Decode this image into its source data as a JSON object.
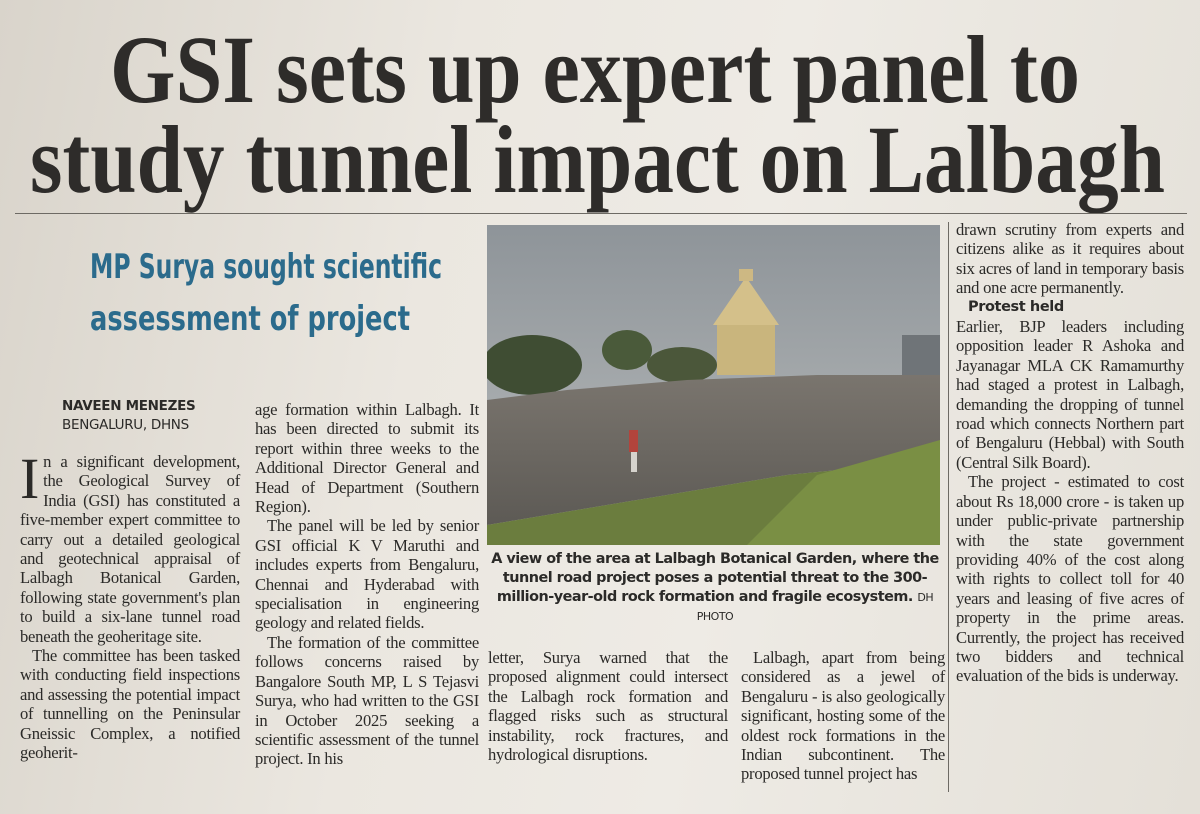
{
  "article": {
    "headline": [
      "GSI sets up expert panel to",
      "study tunnel impact on Lalbagh"
    ],
    "subheadline": [
      "MP Surya sought scientific",
      "assessment of project"
    ],
    "byline": {
      "author": "NAVEEN MENEZES",
      "location": "BENGALURU, DHNS"
    },
    "photo": {
      "caption": "A view of the area at Lalbagh Botanical Garden, where the tunnel road project poses a potential threat to the 300-million-year-old rock formation and fragile ecosystem.",
      "credit": "DH PHOTO"
    },
    "columns": [
      {
        "paragraphs": [
          "In a significant development, the Geological Survey of India (GSI) has constituted a five-member expert committee to carry out a detailed geological and geotechnical appraisal of Lalbagh Botanical Garden, following state government's plan to build a six-lane tunnel road beneath the geoheritage site.",
          "The committee has been tasked with conducting field inspections and assessing the potential impact of tunnelling on the Peninsular Gneissic Complex, a notified geoherit-"
        ]
      },
      {
        "paragraphs": [
          "age formation within Lalbagh. It has been directed to submit its report within three weeks to the Additional Director General and Head of Department (Southern Region).",
          "The panel will be led by senior GSI official K V Maruthi and includes experts from Bengaluru, Chennai and Hyderabad with specialisation in engineering geology and related fields.",
          "The formation of the committee follows concerns raised by Bangalore South MP, L S Tejasvi Surya, who had written to the GSI in October 2025 seeking a scientific assessment of the tunnel project. In his"
        ]
      },
      {
        "paragraphs": [
          "letter, Surya warned that the proposed alignment could intersect the Lalbagh rock formation and flagged risks such as structural instability, rock fractures, and hydrological disruptions."
        ]
      },
      {
        "paragraphs": [
          "Lalbagh, apart from being considered as a jewel of Bengaluru - is also geologically significant, hosting some of the oldest rock formations in the Indian subcontinent. The proposed tunnel project has"
        ]
      },
      {
        "paragraphs": [
          "drawn scrutiny from experts and citizens alike as it requires about six acres of land in temporary basis and one acre permanently."
        ],
        "subhead": "Protest held",
        "paragraphs_after": [
          "Earlier, BJP leaders including opposition leader R Ashoka and Jayanagar MLA CK Ramamurthy had staged a protest in Lalbagh, demanding the dropping of tunnel road which connects Northern part of Bengaluru (Hebbal) with South (Central Silk Board).",
          "The project - estimated to cost about Rs 18,000 crore - is taken up under public-private partnership with the state government providing 40% of the cost along with rights to collect toll for 40 years and leasing of five acres of property in the prime areas. Currently, the project has received two bidders and technical evaluation of the bids is underway."
        ]
      }
    ]
  }
}
